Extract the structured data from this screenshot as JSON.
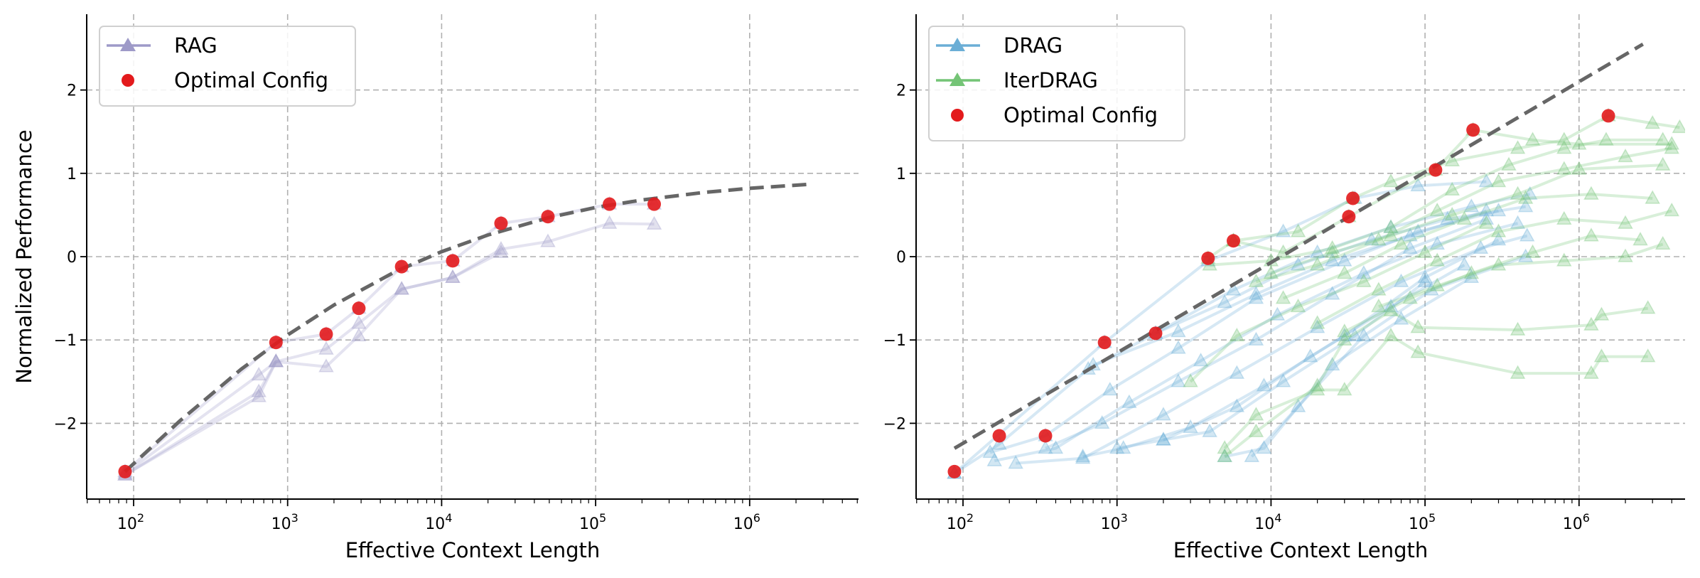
{
  "chart_data": [
    {
      "type": "line",
      "panel": "left",
      "xscale": "log",
      "xlabel": "Effective Context Length",
      "ylabel": "Normalized Performance",
      "xlim": [
        50,
        4700000
      ],
      "ylim": [
        -2.9,
        2.9
      ],
      "xticks": [
        100,
        1000,
        10000,
        100000,
        1000000
      ],
      "xtick_labels": [
        "2",
        "3",
        "4",
        "5",
        "6"
      ],
      "xtick_base": "10",
      "yticks": [
        -2,
        -1,
        0,
        1,
        2
      ],
      "ytick_labels": [
        "−2",
        "−1",
        "0",
        "1",
        "2"
      ],
      "grid": true,
      "legend_position": "top-left",
      "legend": [
        {
          "label": "RAG",
          "kind": "line-triangle",
          "color": "#9e9ac8"
        },
        {
          "label": "Optimal Config",
          "kind": "dot",
          "color": "#e31a1c"
        }
      ],
      "series": [
        {
          "name": "RAG",
          "color": "#9e9ac8",
          "x": [
            88,
            840,
            1780,
            2900,
            5500,
            11800,
            24300,
            49000,
            123000,
            240000
          ],
          "y": [
            -2.58,
            -1.03,
            -0.93,
            -0.62,
            -0.12,
            -0.05,
            0.4,
            0.48,
            0.63,
            0.63
          ]
        },
        {
          "name": "RAG",
          "color": "#9e9ac8",
          "x": [
            88,
            650,
            840,
            1780,
            2900,
            5500,
            11800,
            24300,
            49000,
            123000,
            240000
          ],
          "y": [
            -2.6,
            -1.42,
            -1.26,
            -1.11,
            -0.8,
            -0.39,
            -0.25,
            0.09,
            0.18,
            0.4,
            0.39
          ]
        },
        {
          "name": "RAG",
          "color": "#9e9ac8",
          "x": [
            88,
            650,
            840,
            1780,
            2900,
            5500,
            11800,
            24300
          ],
          "y": [
            -2.62,
            -1.62,
            -1.26,
            -1.32,
            -0.95,
            -0.39,
            -0.25,
            0.05
          ]
        },
        {
          "name": "RAG",
          "color": "#9e9ac8",
          "x": [
            88,
            650,
            840
          ],
          "y": [
            -2.62,
            -1.68,
            -1.26
          ]
        }
      ],
      "optimal_config": {
        "color": "#e31a1c",
        "x": [
          88,
          840,
          1780,
          2900,
          5500,
          11800,
          24300,
          49000,
          123000,
          240000
        ],
        "y": [
          -2.58,
          -1.03,
          -0.93,
          -0.62,
          -0.12,
          -0.05,
          0.4,
          0.48,
          0.63,
          0.63
        ]
      },
      "fit_line": {
        "style": "dashed",
        "color": "#666666",
        "x": [
          88,
          200,
          500,
          1000,
          2000,
          5000,
          10000,
          20000,
          50000,
          100000,
          200000,
          500000,
          1000000,
          2500000
        ],
        "y": [
          -2.58,
          -1.97,
          -1.35,
          -0.94,
          -0.58,
          -0.18,
          0.06,
          0.26,
          0.47,
          0.59,
          0.68,
          0.77,
          0.82,
          0.87
        ]
      }
    },
    {
      "type": "line",
      "panel": "right",
      "xscale": "log",
      "xlabel": "Effective Context Length",
      "ylabel": "",
      "xlim": [
        50,
        4700000
      ],
      "ylim": [
        -2.9,
        2.9
      ],
      "xticks": [
        100,
        1000,
        10000,
        100000,
        1000000
      ],
      "xtick_labels": [
        "2",
        "3",
        "4",
        "5",
        "6"
      ],
      "xtick_base": "10",
      "yticks": [
        -2,
        -1,
        0,
        1,
        2
      ],
      "ytick_labels": [
        "−2",
        "−1",
        "0",
        "1",
        "2"
      ],
      "grid": true,
      "legend_position": "top-left",
      "legend": [
        {
          "label": "DRAG",
          "kind": "line-triangle",
          "color": "#6baed6"
        },
        {
          "label": "IterDRAG",
          "kind": "line-triangle",
          "color": "#74c476"
        },
        {
          "label": "Optimal Config",
          "kind": "dot",
          "color": "#e31a1c"
        }
      ],
      "series": [
        {
          "name": "DRAG",
          "color": "#6baed6",
          "x": [
            88,
            830,
            3900,
            12000,
            35000,
            90000,
            250000
          ],
          "y": [
            -2.6,
            -1.03,
            -0.05,
            0.3,
            0.7,
            0.85,
            0.9
          ]
        },
        {
          "name": "DRAG",
          "color": "#6baed6",
          "x": [
            88,
            172,
            650,
            1780,
            5700,
            20000,
            60000,
            200000,
            480000
          ],
          "y": [
            -2.6,
            -2.25,
            -1.35,
            -0.92,
            -0.4,
            0.05,
            0.35,
            0.6,
            0.75
          ]
        },
        {
          "name": "DRAG",
          "color": "#6baed6",
          "x": [
            150,
            343,
            900,
            2500,
            8000,
            30000,
            90000,
            300000
          ],
          "y": [
            -2.35,
            -2.15,
            -1.6,
            -1.1,
            -0.5,
            -0.05,
            0.3,
            0.55
          ]
        },
        {
          "name": "DRAG",
          "color": "#6baed6",
          "x": [
            160,
            400,
            1200,
            3500,
            11000,
            40000,
            120000,
            400000
          ],
          "y": [
            -2.45,
            -2.3,
            -1.75,
            -1.25,
            -0.7,
            -0.2,
            0.15,
            0.4
          ]
        },
        {
          "name": "DRAG",
          "color": "#6baed6",
          "x": [
            220,
            600,
            2000,
            6000,
            20000,
            70000,
            230000,
            460000
          ],
          "y": [
            -2.48,
            -2.42,
            -1.9,
            -1.4,
            -0.85,
            -0.3,
            0.1,
            0.25
          ]
        },
        {
          "name": "DRAG",
          "color": "#6baed6",
          "x": [
            343,
            800,
            2500,
            8000,
            25000,
            80000,
            250000
          ],
          "y": [
            -2.3,
            -2.0,
            -1.5,
            -1.0,
            -0.45,
            0.1,
            0.45
          ]
        },
        {
          "name": "DRAG",
          "color": "#6baed6",
          "x": [
            600,
            1100,
            3000,
            9000,
            30000,
            100000,
            300000
          ],
          "y": [
            -2.4,
            -2.3,
            -2.05,
            -1.55,
            -0.95,
            -0.25,
            0.2
          ]
        },
        {
          "name": "DRAG",
          "color": "#6baed6",
          "x": [
            1000,
            2000,
            6000,
            18000,
            60000,
            180000
          ],
          "y": [
            -2.3,
            -2.2,
            -1.8,
            -1.2,
            -0.6,
            -0.1
          ]
        },
        {
          "name": "DRAG",
          "color": "#6baed6",
          "x": [
            2000,
            4000,
            12000,
            35000,
            100000
          ],
          "y": [
            -2.2,
            -2.1,
            -1.5,
            -0.95,
            -0.3
          ]
        },
        {
          "name": "DRAG",
          "color": "#6baed6",
          "x": [
            5000,
            9000,
            25000,
            70000,
            200000
          ],
          "y": [
            -2.4,
            -2.3,
            -1.3,
            -0.75,
            -0.25
          ]
        },
        {
          "name": "DRAG",
          "color": "#6baed6",
          "x": [
            7500,
            15000,
            40000,
            110000,
            450000
          ],
          "y": [
            -2.4,
            -1.8,
            -0.95,
            -0.4,
            0.0
          ]
        },
        {
          "name": "DRAG",
          "color": "#6baed6",
          "x": [
            1780,
            5000,
            15000,
            45000,
            140000,
            450000
          ],
          "y": [
            -0.92,
            -0.55,
            -0.1,
            0.2,
            0.45,
            0.6
          ]
        },
        {
          "name": "DRAG",
          "color": "#6baed6",
          "x": [
            700,
            2500,
            8000,
            25000,
            80000,
            250000
          ],
          "y": [
            -1.3,
            -0.9,
            -0.45,
            -0.05,
            0.25,
            0.55
          ]
        },
        {
          "name": "IterDRAG",
          "color": "#74c476",
          "x": [
            3900,
            5700,
            12000,
            32000,
            117000,
            205000,
            500000,
            1000000,
            4000000
          ],
          "y": [
            -0.02,
            0.19,
            0.05,
            0.48,
            1.04,
            1.52,
            1.4,
            1.35,
            1.35
          ]
        },
        {
          "name": "IterDRAG",
          "color": "#74c476",
          "x": [
            5700,
            15000,
            34000,
            60000,
            150000,
            400000,
            800000,
            1550000,
            3000000,
            4500000
          ],
          "y": [
            0.19,
            0.3,
            0.7,
            0.9,
            1.15,
            1.3,
            1.4,
            1.69,
            1.6,
            1.55
          ]
        },
        {
          "name": "IterDRAG",
          "color": "#74c476",
          "x": [
            4000,
            10000,
            25000,
            60000,
            150000,
            350000,
            800000,
            1500000,
            3500000
          ],
          "y": [
            -0.1,
            -0.05,
            0.1,
            0.35,
            0.8,
            1.1,
            1.3,
            1.4,
            1.4
          ]
        },
        {
          "name": "IterDRAG",
          "color": "#74c476",
          "x": [
            8000,
            20000,
            50000,
            120000,
            300000,
            800000,
            2000000,
            4000000
          ],
          "y": [
            -0.3,
            -0.1,
            0.2,
            0.55,
            0.9,
            1.05,
            1.2,
            1.3
          ]
        },
        {
          "name": "IterDRAG",
          "color": "#74c476",
          "x": [
            12000,
            30000,
            70000,
            180000,
            450000,
            1200000,
            3000000
          ],
          "y": [
            -0.5,
            -0.2,
            0.15,
            0.45,
            0.7,
            0.75,
            0.7
          ]
        },
        {
          "name": "IterDRAG",
          "color": "#74c476",
          "x": [
            20000,
            50000,
            120000,
            300000,
            800000,
            2000000,
            4000000
          ],
          "y": [
            -0.8,
            -0.4,
            -0.05,
            0.3,
            0.45,
            0.4,
            0.55
          ]
        },
        {
          "name": "IterDRAG",
          "color": "#74c476",
          "x": [
            30000,
            80000,
            200000,
            500000,
            1200000,
            2500000
          ],
          "y": [
            -0.9,
            -0.5,
            -0.2,
            0.05,
            0.25,
            0.2
          ]
        },
        {
          "name": "IterDRAG",
          "color": "#74c476",
          "x": [
            50000,
            120000,
            300000,
            800000,
            2000000,
            3500000
          ],
          "y": [
            -0.6,
            -0.35,
            -0.1,
            -0.05,
            0.0,
            0.15
          ]
        },
        {
          "name": "IterDRAG",
          "color": "#74c476",
          "x": [
            5000,
            8000,
            20000,
            30000,
            60000,
            90000,
            400000,
            1200000,
            1400000,
            2800000
          ],
          "y": [
            -2.4,
            -2.1,
            -1.55,
            -1.0,
            -0.65,
            -0.85,
            -0.88,
            -0.82,
            -0.7,
            -0.62
          ]
        },
        {
          "name": "IterDRAG",
          "color": "#74c476",
          "x": [
            5000,
            8000,
            20000,
            30000,
            60000,
            90000,
            400000,
            1200000,
            1400000,
            2800000
          ],
          "y": [
            -2.3,
            -1.9,
            -1.6,
            -1.6,
            -0.95,
            -1.15,
            -1.4,
            -1.4,
            -1.2,
            -1.2
          ]
        },
        {
          "name": "IterDRAG",
          "color": "#74c476",
          "x": [
            3000,
            6000,
            15000,
            40000,
            100000,
            250000
          ],
          "y": [
            -1.5,
            -0.95,
            -0.6,
            -0.3,
            0.05,
            0.4
          ]
        },
        {
          "name": "IterDRAG",
          "color": "#74c476",
          "x": [
            10000,
            25000,
            60000,
            150000,
            400000,
            1000000,
            3500000
          ],
          "y": [
            -0.2,
            0.05,
            0.25,
            0.5,
            0.75,
            1.05,
            1.1
          ]
        }
      ],
      "optimal_config": {
        "color": "#e31a1c",
        "x": [
          88,
          172,
          343,
          830,
          1780,
          3900,
          5700,
          32000,
          34000,
          117000,
          205000,
          1550000
        ],
        "y": [
          -2.58,
          -2.15,
          -2.15,
          -1.03,
          -0.92,
          -0.02,
          0.19,
          0.48,
          0.7,
          1.04,
          1.52,
          1.69
        ]
      },
      "fit_line": {
        "style": "dashed",
        "color": "#666666",
        "x": [
          88,
          2600000
        ],
        "y": [
          -2.3,
          2.55
        ]
      }
    }
  ]
}
